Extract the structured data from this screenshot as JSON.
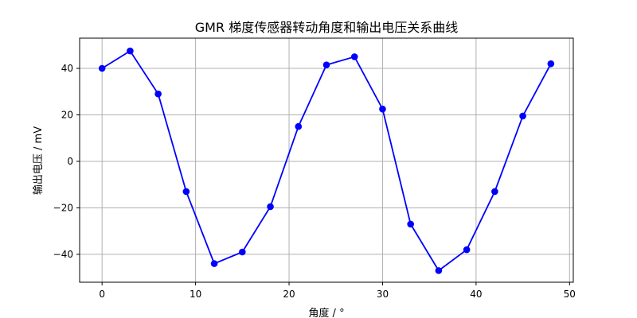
{
  "chart_data": {
    "type": "line",
    "title": "GMR 梯度传感器转动角度和输出电压关系曲线",
    "xlabel": "角度 / °",
    "ylabel": "输出电压 / mV",
    "xlim": [
      -2.4,
      50.4
    ],
    "ylim": [
      -52,
      53
    ],
    "xticks": [
      0,
      10,
      20,
      30,
      40,
      50
    ],
    "yticks": [
      -40,
      -20,
      0,
      20,
      40
    ],
    "grid": true,
    "series": [
      {
        "color": "#0000ff",
        "x": [
          0,
          3,
          6,
          9,
          12,
          15,
          18,
          21,
          24,
          27,
          30,
          33,
          36,
          39,
          42,
          45,
          48
        ],
        "y": [
          40,
          47.5,
          29,
          -13,
          -44,
          -39,
          -19.5,
          15,
          41.5,
          45,
          22.5,
          -27,
          -47,
          -38,
          -13,
          19.5,
          42
        ]
      }
    ]
  }
}
